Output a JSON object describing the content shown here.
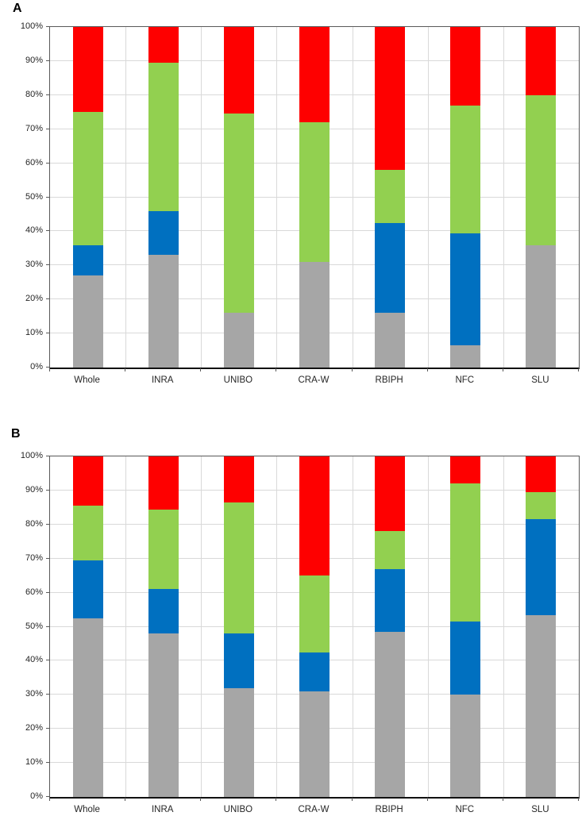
{
  "panels": [
    {
      "label": "A"
    },
    {
      "label": "B"
    }
  ],
  "chart_data": [
    {
      "type": "bar",
      "stacked": true,
      "title": "",
      "xlabel": "",
      "ylabel": "",
      "ylim": [
        0,
        100
      ],
      "grid": true,
      "legend": false,
      "yticks": [
        "0%",
        "10%",
        "20%",
        "30%",
        "40%",
        "50%",
        "60%",
        "70%",
        "80%",
        "90%",
        "100%"
      ],
      "categories": [
        "Whole",
        "INRA",
        "UNIBO",
        "CRA-W",
        "RBIPH",
        "NFC",
        "SLU"
      ],
      "series": [
        {
          "name": "gray",
          "color": "#a6a6a6",
          "values": [
            27,
            33,
            16,
            31,
            16,
            6.5,
            36
          ]
        },
        {
          "name": "blue",
          "color": "#0070c0",
          "values": [
            9,
            13,
            0,
            0,
            26.5,
            33,
            0
          ]
        },
        {
          "name": "green",
          "color": "#92d050",
          "values": [
            39,
            43.5,
            58.5,
            41,
            15.5,
            37.5,
            44
          ]
        },
        {
          "name": "red",
          "color": "#fe0000",
          "values": [
            25,
            10.5,
            25.5,
            28,
            42,
            23,
            20
          ]
        }
      ]
    },
    {
      "type": "bar",
      "stacked": true,
      "title": "",
      "xlabel": "",
      "ylabel": "",
      "ylim": [
        0,
        100
      ],
      "grid": true,
      "legend": false,
      "yticks": [
        "0%",
        "10%",
        "20%",
        "30%",
        "40%",
        "50%",
        "60%",
        "70%",
        "80%",
        "90%",
        "100%"
      ],
      "categories": [
        "Whole",
        "INRA",
        "UNIBO",
        "CRA-W",
        "RBIPH",
        "NFC",
        "SLU"
      ],
      "series": [
        {
          "name": "gray",
          "color": "#a6a6a6",
          "values": [
            52.5,
            48,
            32,
            31,
            48.5,
            30,
            53.5
          ]
        },
        {
          "name": "blue",
          "color": "#0070c0",
          "values": [
            17,
            13,
            16,
            11.5,
            18.5,
            21.5,
            28
          ]
        },
        {
          "name": "green",
          "color": "#92d050",
          "values": [
            16,
            23.5,
            38.5,
            22.5,
            11,
            40.5,
            8
          ]
        },
        {
          "name": "red",
          "color": "#fe0000",
          "values": [
            14.5,
            15.5,
            13.5,
            35,
            22,
            8,
            10.5
          ]
        }
      ]
    }
  ],
  "style": {
    "gridline_color": "#d9d9d9",
    "axis_color": "#595959",
    "text_color": "#262626"
  }
}
